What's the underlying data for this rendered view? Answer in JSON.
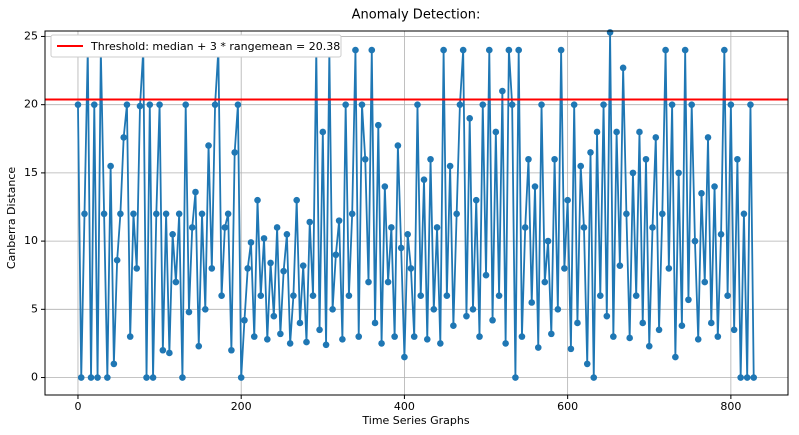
{
  "chart_data": {
    "type": "line",
    "title": "Anomaly Detection:",
    "xlabel": "Time Series Graphs",
    "ylabel": "Canberra Distance",
    "x": [
      0,
      4,
      8,
      12,
      16,
      20,
      24,
      28,
      32,
      36,
      40,
      44,
      48,
      52,
      56,
      60,
      64,
      68,
      72,
      76,
      80,
      84,
      88,
      92,
      96,
      100,
      104,
      108,
      112,
      116,
      120,
      124,
      128,
      132,
      136,
      140,
      144,
      148,
      152,
      156,
      160,
      164,
      168,
      172,
      176,
      180,
      184,
      188,
      192,
      196,
      200,
      204,
      208,
      212,
      216,
      220,
      224,
      228,
      232,
      236,
      240,
      244,
      248,
      252,
      256,
      260,
      264,
      268,
      272,
      276,
      280,
      284,
      288,
      292,
      296,
      300,
      304,
      308,
      312,
      316,
      320,
      324,
      328,
      332,
      336,
      340,
      344,
      348,
      352,
      356,
      360,
      364,
      368,
      372,
      376,
      380,
      384,
      388,
      392,
      396,
      400,
      404,
      408,
      412,
      416,
      420,
      424,
      428,
      432,
      436,
      440,
      444,
      448,
      452,
      456,
      460,
      464,
      468,
      472,
      476,
      480,
      484,
      488,
      492,
      496,
      500,
      504,
      508,
      512,
      516,
      520,
      524,
      528,
      532,
      536,
      540,
      544,
      548,
      552,
      556,
      560,
      564,
      568,
      572,
      576,
      580,
      584,
      588,
      592,
      596,
      600,
      604,
      608,
      612,
      616,
      620,
      624,
      628,
      632,
      636,
      640,
      644,
      648,
      652,
      656,
      660,
      664,
      668,
      672,
      676,
      680,
      684,
      688,
      692,
      696,
      700,
      704,
      708,
      712,
      716,
      720,
      724,
      728,
      732,
      736,
      740,
      744,
      748,
      752,
      756,
      760,
      764,
      768,
      772,
      776,
      780,
      784,
      788,
      792,
      796,
      800,
      804,
      808,
      812,
      816,
      820,
      824,
      828
    ],
    "values": [
      20,
      0,
      12,
      24,
      0,
      20,
      0,
      24,
      12,
      0,
      15.5,
      1,
      8.6,
      12,
      17.6,
      20,
      3,
      12,
      8,
      19.9,
      24,
      0,
      20,
      0,
      12,
      20,
      2,
      12,
      1.8,
      10.5,
      7,
      12,
      0,
      20,
      4.8,
      11,
      13.6,
      2.3,
      12,
      5,
      17,
      8,
      20,
      24,
      6,
      11,
      12,
      2,
      16.5,
      20,
      0,
      4.2,
      8,
      9.9,
      3,
      13,
      6,
      10.2,
      2.8,
      8.4,
      4.5,
      11,
      3.2,
      7.8,
      10.5,
      2.5,
      6,
      13,
      4,
      8.2,
      2.6,
      11.4,
      6,
      24,
      3.5,
      18,
      2.4,
      24,
      5,
      9,
      11.5,
      2.8,
      20,
      6,
      12,
      24,
      3,
      20,
      16,
      7,
      24,
      4,
      18.5,
      2.5,
      14,
      7,
      11,
      3,
      17,
      9.5,
      1.5,
      10.5,
      8,
      3,
      20,
      6,
      14.5,
      2.8,
      16,
      5,
      11,
      2.5,
      24,
      6,
      15.5,
      3.8,
      12,
      20,
      24,
      4.5,
      19,
      5,
      13,
      3,
      20,
      7.5,
      24,
      4.2,
      18,
      6,
      21,
      2.5,
      24,
      20,
      0,
      24,
      3,
      11,
      16,
      5.5,
      14,
      2.2,
      20,
      7,
      10,
      3.2,
      16,
      5,
      24,
      8,
      13,
      2.1,
      20,
      4,
      15.5,
      11,
      1,
      16.5,
      0,
      18,
      6,
      20,
      4.5,
      25.3,
      3,
      18,
      8.2,
      22.7,
      12,
      2.9,
      15,
      6,
      18,
      4,
      16,
      2.3,
      11,
      17.6,
      3.5,
      12,
      24,
      8,
      20,
      1.5,
      15,
      3.8,
      24,
      5.7,
      20,
      10,
      2.8,
      13.5,
      7,
      17.6,
      4,
      14,
      3,
      10.5,
      24,
      6,
      20,
      3.5,
      16,
      0,
      12,
      0,
      20,
      0
    ],
    "color": "#1f77b4",
    "threshold": {
      "label": "Threshold: median + 3 * rangemean = 20.38",
      "value": 20.38,
      "color": "#ff0000"
    },
    "legend": "upper left",
    "xlim": [
      -40.4,
      870
    ],
    "xticks": [
      0,
      200,
      400,
      600,
      800
    ],
    "ylim": [
      -1.28,
      25.4
    ],
    "yticks": [
      0,
      5,
      10,
      15,
      20,
      25
    ],
    "grid": true
  }
}
